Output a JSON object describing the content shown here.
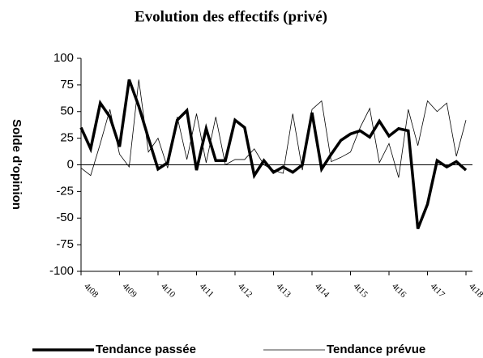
{
  "chart_data": {
    "type": "line",
    "title": "Evolution des effectifs   (privé)",
    "y_label": "Solde d'opinion",
    "categories": [
      "4t08",
      null,
      null,
      null,
      "4t09",
      null,
      null,
      null,
      "4t10",
      null,
      null,
      null,
      "4t11",
      null,
      null,
      null,
      "4t12",
      null,
      null,
      null,
      "4t13",
      null,
      null,
      null,
      "4t14",
      null,
      null,
      null,
      "4t15",
      null,
      null,
      null,
      "4t16",
      null,
      null,
      null,
      "4t17",
      null,
      null,
      null,
      "4t18"
    ],
    "series": [
      {
        "name": "Tendance passée",
        "color": "#000000",
        "width": 3.5,
        "values": [
          35,
          15,
          58,
          45,
          17,
          80,
          55,
          25,
          -4,
          2,
          42,
          51,
          -5,
          34,
          4,
          4,
          42,
          35,
          -10,
          4,
          -7,
          -2,
          -7,
          0,
          49,
          -4,
          10,
          23,
          29,
          32,
          26,
          41,
          27,
          34,
          32,
          -60,
          -37,
          4,
          -2,
          3,
          -5
        ]
      },
      {
        "name": "Tendance prévue",
        "color": "#000000",
        "width": 0.8,
        "values": [
          -3,
          -10,
          20,
          52,
          10,
          -2,
          80,
          12,
          25,
          -3,
          45,
          5,
          48,
          2,
          45,
          0,
          5,
          5,
          15,
          0,
          -5,
          -8,
          48,
          -5,
          52,
          60,
          3,
          7,
          12,
          35,
          53,
          2,
          20,
          -12,
          52,
          18,
          60,
          50,
          58,
          8,
          42
        ]
      }
    ],
    "ylim": [
      -100,
      100
    ],
    "yticks": [
      -100,
      -75,
      -50,
      -25,
      0,
      25,
      50,
      75,
      100
    ]
  }
}
